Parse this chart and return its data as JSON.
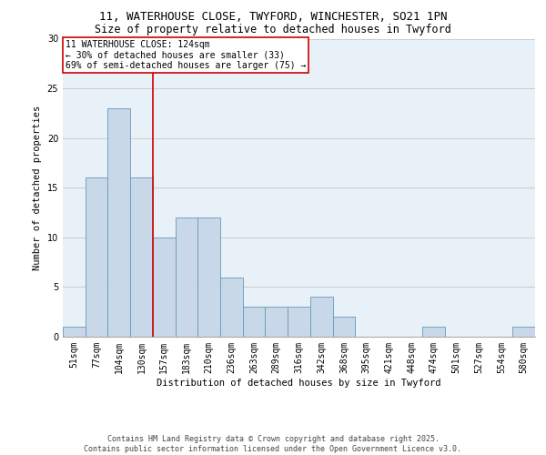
{
  "title_line1": "11, WATERHOUSE CLOSE, TWYFORD, WINCHESTER, SO21 1PN",
  "title_line2": "Size of property relative to detached houses in Twyford",
  "xlabel": "Distribution of detached houses by size in Twyford",
  "ylabel": "Number of detached properties",
  "categories": [
    "51sqm",
    "77sqm",
    "104sqm",
    "130sqm",
    "157sqm",
    "183sqm",
    "210sqm",
    "236sqm",
    "263sqm",
    "289sqm",
    "316sqm",
    "342sqm",
    "368sqm",
    "395sqm",
    "421sqm",
    "448sqm",
    "474sqm",
    "501sqm",
    "527sqm",
    "554sqm",
    "580sqm"
  ],
  "values": [
    1,
    16,
    23,
    16,
    10,
    12,
    12,
    6,
    3,
    3,
    3,
    4,
    2,
    0,
    0,
    0,
    1,
    0,
    0,
    0,
    1
  ],
  "bar_color": "#c8d8e8",
  "bar_edge_color": "#6699bb",
  "bar_width": 1.0,
  "vline_x": 3,
  "vline_color": "#cc0000",
  "annotation_text": "11 WATERHOUSE CLOSE: 124sqm\n← 30% of detached houses are smaller (33)\n69% of semi-detached houses are larger (75) →",
  "annotation_box_color": "#ffffff",
  "annotation_box_edge": "#cc0000",
  "ylim": [
    0,
    30
  ],
  "yticks": [
    0,
    5,
    10,
    15,
    20,
    25,
    30
  ],
  "grid_color": "#cccccc",
  "background_color": "#e8f0f8",
  "footer_line1": "Contains HM Land Registry data © Crown copyright and database right 2025.",
  "footer_line2": "Contains public sector information licensed under the Open Government Licence v3.0.",
  "title_fontsize": 9,
  "title2_fontsize": 8.5,
  "axis_label_fontsize": 7.5,
  "tick_fontsize": 7,
  "annotation_fontsize": 7,
  "footer_fontsize": 6
}
